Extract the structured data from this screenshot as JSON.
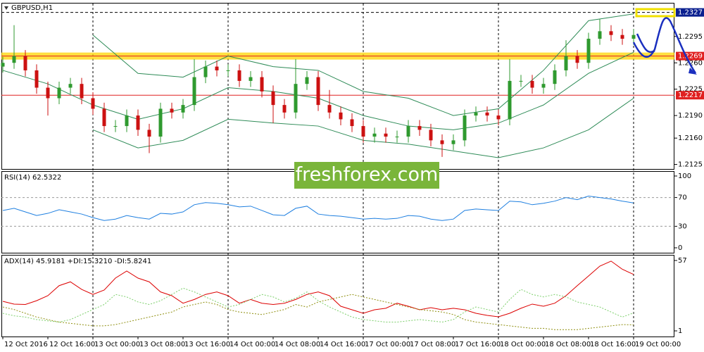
{
  "chart_data": [
    {
      "type": "candlestick",
      "title": "GBPUSD,H1",
      "xlim": [
        -0.125,
        59.625
      ],
      "ylim": [
        1.2119,
        1.2336
      ],
      "xticks": [
        {
          "value": 0,
          "label": "12 Oct 2016"
        },
        {
          "value": 4,
          "label": "12 Oct 16:00"
        },
        {
          "value": 8,
          "label": "13 Oct 00:00"
        },
        {
          "value": 12,
          "label": "13 Oct 08:00"
        },
        {
          "value": 16,
          "label": "13 Oct 16:00"
        },
        {
          "value": 20,
          "label": "14 Oct 00:00"
        },
        {
          "value": 24,
          "label": "14 Oct 08:00"
        },
        {
          "value": 28,
          "label": "14 Oct 16:00"
        },
        {
          "value": 32,
          "label": "17 Oct 00:00"
        },
        {
          "value": 36,
          "label": "17 Oct 08:00"
        },
        {
          "value": 40,
          "label": "17 Oct 16:00"
        },
        {
          "value": 44,
          "label": "18 Oct 00:00"
        },
        {
          "value": 48,
          "label": "18 Oct 08:00"
        },
        {
          "value": 52,
          "label": "18 Oct 16:00"
        },
        {
          "value": 56,
          "label": "19 Oct 00:00"
        }
      ],
      "yticks": [
        1.2125,
        {
          "value": 1.216,
          "label": "1.2160"
        },
        {
          "value": 1.219,
          "label": "1.2190"
        },
        1.2225,
        {
          "value": 1.226,
          "label": "1.2260"
        },
        1.2295
      ],
      "up_color": "#2f9a2f",
      "down_color": "#cc1111",
      "open": [
        1.2255,
        1.226,
        1.2269,
        1.225,
        1.2227,
        1.2213,
        1.2227,
        1.2232,
        1.2213,
        1.2199,
        1.2176,
        1.2176,
        1.219,
        1.2171,
        1.2162,
        1.2199,
        1.2194,
        1.2204,
        1.2241,
        1.2255,
        1.225,
        1.225,
        1.2236,
        1.2241,
        1.2222,
        1.2204,
        1.2194,
        1.2232,
        1.2241,
        1.2204,
        1.2194,
        1.2185,
        1.2176,
        1.2162,
        1.2166,
        1.2162,
        1.2162,
        1.2176,
        1.2171,
        1.2157,
        1.2152,
        1.2157,
        1.219,
        1.2194,
        1.219,
        1.2185,
        1.2236,
        1.2236,
        1.2227,
        1.2232,
        1.225,
        1.2269,
        1.226,
        1.2292,
        1.2302,
        1.2297,
        1.2292
      ],
      "high": [
        1.2268,
        1.231,
        1.2277,
        1.2258,
        1.2235,
        1.2235,
        1.224,
        1.224,
        1.2221,
        1.2207,
        1.2184,
        1.2198,
        1.2198,
        1.2179,
        1.2207,
        1.2207,
        1.2212,
        1.2265,
        1.2263,
        1.2263,
        1.2258,
        1.2258,
        1.2249,
        1.2249,
        1.223,
        1.2212,
        1.2265,
        1.2249,
        1.2249,
        1.2224,
        1.2202,
        1.2193,
        1.2184,
        1.2174,
        1.2174,
        1.217,
        1.2184,
        1.2184,
        1.2179,
        1.2165,
        1.2165,
        1.2198,
        1.2202,
        1.2202,
        1.2198,
        1.2265,
        1.2244,
        1.2244,
        1.224,
        1.2258,
        1.229,
        1.2277,
        1.23,
        1.2318,
        1.231,
        1.2305,
        1.2305
      ],
      "low": [
        1.2247,
        1.2252,
        1.2242,
        1.2219,
        1.219,
        1.2205,
        1.2219,
        1.2205,
        1.2191,
        1.2168,
        1.2168,
        1.2168,
        1.2163,
        1.214,
        1.2154,
        1.2186,
        1.2186,
        1.2196,
        1.2233,
        1.2242,
        1.2242,
        1.2228,
        1.2228,
        1.2214,
        1.218,
        1.2186,
        1.2186,
        1.2224,
        1.2196,
        1.2186,
        1.2177,
        1.2168,
        1.2154,
        1.2154,
        1.2154,
        1.2154,
        1.2154,
        1.2163,
        1.2149,
        1.2135,
        1.2144,
        1.2149,
        1.2182,
        1.2182,
        1.2177,
        1.2177,
        1.2228,
        1.2219,
        1.2219,
        1.2224,
        1.2242,
        1.2252,
        1.2252,
        1.2284,
        1.2289,
        1.2284,
        1.2284
      ],
      "close": [
        1.226,
        1.2269,
        1.225,
        1.2227,
        1.2213,
        1.2227,
        1.2232,
        1.2213,
        1.2199,
        1.2176,
        1.2176,
        1.219,
        1.2171,
        1.2162,
        1.2199,
        1.2194,
        1.2204,
        1.2241,
        1.2255,
        1.225,
        1.225,
        1.2236,
        1.2241,
        1.2222,
        1.2204,
        1.2194,
        1.2232,
        1.2241,
        1.2204,
        1.2194,
        1.2185,
        1.2176,
        1.2162,
        1.2166,
        1.2162,
        1.2162,
        1.2176,
        1.2171,
        1.2157,
        1.2152,
        1.2157,
        1.219,
        1.2194,
        1.219,
        1.2185,
        1.2236,
        1.2236,
        1.2227,
        1.2232,
        1.225,
        1.2269,
        1.226,
        1.2292,
        1.2302,
        1.2297,
        1.2292,
        1.2297
      ],
      "series": [
        {
          "color": "#2e8b57",
          "x": [
            8,
            12,
            16,
            20,
            24,
            28,
            32,
            36,
            40,
            44,
            48,
            52,
            56
          ],
          "values": [
            1.2297,
            1.2246,
            1.2241,
            1.2269,
            1.2255,
            1.225,
            1.2222,
            1.2213,
            1.219,
            1.2199,
            1.225,
            1.2316,
            1.2325
          ]
        },
        {
          "color": "#2e8b57",
          "x": [
            0,
            4,
            8,
            12,
            16,
            20,
            24,
            28,
            32,
            36,
            40,
            44,
            48,
            52,
            56
          ],
          "values": [
            1.225,
            1.2232,
            1.2204,
            1.2185,
            1.2199,
            1.2227,
            1.2222,
            1.2213,
            1.219,
            1.2176,
            1.2171,
            1.218,
            1.2204,
            1.2246,
            1.2274
          ]
        },
        {
          "color": "#2e8b57",
          "x": [
            8,
            12,
            16,
            20,
            24,
            28,
            32,
            36,
            40,
            44,
            48,
            52,
            56
          ],
          "values": [
            1.2171,
            1.2147,
            1.2157,
            1.2185,
            1.218,
            1.2176,
            1.2157,
            1.2152,
            1.2143,
            1.2134,
            1.2147,
            1.2171,
            1.2213
          ]
        }
      ],
      "levels": [
        {
          "value": 1.2327,
          "color": "#0a1f8f",
          "style": "dash"
        },
        {
          "value": 1.2269,
          "label": "1.2269",
          "color": "#e02020",
          "style": "band"
        },
        {
          "value": 1.2217,
          "color": "#e02020",
          "style": "solid"
        }
      ],
      "watermark": "freshforex.com"
    },
    {
      "type": "line",
      "title": "RSI(14) 62.5322",
      "xlim": [
        -0.125,
        59.625
      ],
      "ylim": [
        0,
        100
      ],
      "yticks": [
        0,
        30,
        70,
        100
      ],
      "levels": [
        30,
        70
      ],
      "series": [
        {
          "color": "#1e7fe0",
          "values": [
            52,
            55,
            50,
            45,
            48,
            53,
            50,
            47,
            42,
            38,
            40,
            45,
            42,
            40,
            48,
            47,
            50,
            60,
            63,
            62,
            60,
            57,
            58,
            52,
            46,
            45,
            55,
            58,
            47,
            45,
            44,
            42,
            40,
            41,
            40,
            41,
            45,
            44,
            40,
            38,
            40,
            52,
            54,
            53,
            52,
            65,
            64,
            60,
            62,
            65,
            70,
            67,
            72,
            70,
            68,
            65,
            62.5322
          ]
        }
      ]
    },
    {
      "type": "line",
      "title": "ADX(14) 45.9181 +DI:15.3210 -DI:5.8241",
      "xlim": [
        -0.125,
        59.625
      ],
      "ylim": [
        1,
        57
      ],
      "yticks": [
        1,
        57
      ],
      "series": [
        {
          "color": "#dd0000",
          "values": [
            24.5,
            22.3,
            22,
            25,
            29,
            37,
            40,
            34,
            30,
            33.5,
            43,
            48.6,
            43,
            40,
            32,
            29,
            23,
            26,
            30,
            32,
            29,
            23,
            26,
            23,
            22,
            23,
            26,
            30,
            32,
            29,
            20.6,
            17.8,
            15,
            17.8,
            19,
            23,
            20.6,
            17.8,
            19.5,
            17.8,
            19,
            17.8,
            15,
            13.3,
            12.2,
            15,
            19,
            22.3,
            20.6,
            23,
            29,
            37,
            44.7,
            52.5,
            56.5,
            50,
            45.9181
          ]
        },
        {
          "color": "#7bcf6a",
          "dash": true,
          "values": [
            15,
            13,
            12,
            10,
            9,
            8,
            10,
            14,
            18,
            22,
            30,
            28,
            24,
            22,
            25,
            30,
            35,
            32,
            28,
            24,
            20,
            22,
            26,
            30,
            28,
            24,
            27,
            32,
            25,
            20,
            16,
            12,
            10,
            9,
            8,
            8,
            9,
            10,
            9,
            8,
            10,
            16,
            20,
            18,
            16,
            26,
            34,
            30,
            28,
            30,
            28,
            24,
            22,
            20,
            16,
            12,
            15.321
          ]
        },
        {
          "color": "#8f8f10",
          "dash": true,
          "values": [
            20,
            18,
            15,
            12,
            10,
            8,
            7,
            6,
            5,
            5,
            6,
            8,
            10,
            12,
            14,
            16,
            20,
            22,
            24,
            22,
            18,
            16,
            15,
            14,
            16,
            18,
            22,
            20,
            24,
            26,
            28,
            30,
            28,
            26,
            24,
            22,
            20,
            18,
            17,
            16,
            14,
            10,
            8,
            7,
            6,
            5,
            4,
            3,
            3,
            2,
            2,
            2,
            3,
            4,
            5,
            6,
            5.8241
          ]
        }
      ]
    }
  ]
}
